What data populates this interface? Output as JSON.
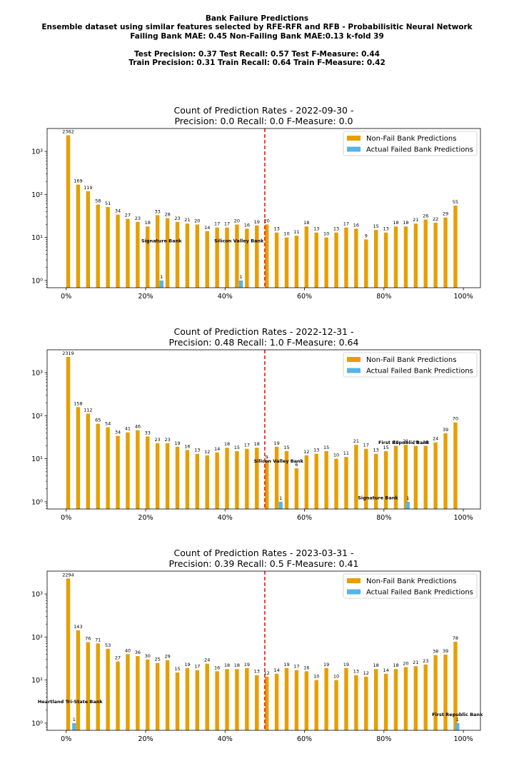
{
  "header": {
    "lines": [
      "Bank Failure Predictions",
      "Ensemble dataset using similar features selected by RFE-RFR and RFB - Probabilisitic Neural Network",
      "Failing Bank MAE: 0.45 Non-Failing Bank MAE:0.13 k-fold 39",
      "",
      "Test Precision: 0.37 Test Recall: 0.57 Test F-Measure: 0.44",
      "Train Precision: 0.31 Train Recall: 0.64 Train F-Measure: 0.42"
    ]
  },
  "colors": {
    "non_fail": "#E69F00",
    "failed": "#56B4E9",
    "threshold": "#FF0000"
  },
  "chart_data": [
    {
      "type": "bar",
      "title_line1": "Count of Prediction Rates - 2022-09-30 -",
      "title_line2": "Precision: 0.0   Recall: 0.0   F-Measure: 0.0",
      "x_ticks": [
        "0%",
        "20%",
        "40%",
        "60%",
        "80%",
        "100%"
      ],
      "x_tick_values": [
        0,
        20,
        40,
        60,
        80,
        100
      ],
      "y_scale": "log",
      "y_ticks": [
        "10⁰",
        "10¹",
        "10²",
        "10³"
      ],
      "y_tick_values": [
        1,
        10,
        100,
        1000
      ],
      "legend_position": "top-right",
      "threshold": 50,
      "series": [
        {
          "name": "Non-Fail Bank Predictions",
          "color_key": "non_fail",
          "points": [
            [
              0.5,
              2362
            ],
            [
              3,
              169
            ],
            [
              5.5,
              119
            ],
            [
              8,
              58
            ],
            [
              10.5,
              51
            ],
            [
              13,
              34
            ],
            [
              15.5,
              27
            ],
            [
              18,
              23
            ],
            [
              20.5,
              18
            ],
            [
              23,
              33
            ],
            [
              25.5,
              28
            ],
            [
              28,
              23
            ],
            [
              30.5,
              21
            ],
            [
              33,
              20
            ],
            [
              35.5,
              14
            ],
            [
              38,
              17
            ],
            [
              40.5,
              17
            ],
            [
              43,
              20
            ],
            [
              45.5,
              16
            ],
            [
              48,
              19
            ],
            [
              50.5,
              20
            ],
            [
              53,
              13
            ],
            [
              55.5,
              10
            ],
            [
              58,
              11
            ],
            [
              60.5,
              18
            ],
            [
              63,
              13
            ],
            [
              65.5,
              10
            ],
            [
              68,
              13
            ],
            [
              70.5,
              17
            ],
            [
              73,
              16
            ],
            [
              75.5,
              9
            ],
            [
              78,
              15
            ],
            [
              80.5,
              13
            ],
            [
              83,
              18
            ],
            [
              85.5,
              18
            ],
            [
              88,
              21
            ],
            [
              90.5,
              26
            ],
            [
              93,
              22
            ],
            [
              95.5,
              29
            ],
            [
              98,
              55
            ]
          ]
        },
        {
          "name": "Actual Failed Bank Predictions",
          "color_key": "failed",
          "points": [
            [
              24,
              1
            ],
            [
              44,
              1
            ]
          ]
        }
      ],
      "annotations": [
        {
          "text": "Signature Bank",
          "x": 24,
          "y": 8.5
        },
        {
          "text": "Silicon Valley Bank",
          "x": 43.5,
          "y": 8.5
        }
      ]
    },
    {
      "type": "bar",
      "title_line1": "Count of Prediction Rates - 2022-12-31 -",
      "title_line2": "Precision: 0.48   Recall: 1.0   F-Measure: 0.64",
      "x_ticks": [
        "0%",
        "20%",
        "40%",
        "60%",
        "80%",
        "100%"
      ],
      "x_tick_values": [
        0,
        20,
        40,
        60,
        80,
        100
      ],
      "y_scale": "log",
      "y_ticks": [
        "10⁰",
        "10¹",
        "10²",
        "10³"
      ],
      "y_tick_values": [
        1,
        10,
        100,
        1000
      ],
      "legend_position": "top-right",
      "threshold": 50,
      "series": [
        {
          "name": "Non-Fail Bank Predictions",
          "color_key": "non_fail",
          "points": [
            [
              0.5,
              2319
            ],
            [
              3,
              158
            ],
            [
              5.5,
              112
            ],
            [
              8,
              65
            ],
            [
              10.5,
              54
            ],
            [
              13,
              34
            ],
            [
              15.5,
              41
            ],
            [
              18,
              46
            ],
            [
              20.5,
              33
            ],
            [
              23,
              23
            ],
            [
              25.5,
              23
            ],
            [
              28,
              19
            ],
            [
              30.5,
              16
            ],
            [
              33,
              13
            ],
            [
              35.5,
              12
            ],
            [
              38,
              14
            ],
            [
              40.5,
              18
            ],
            [
              43,
              15
            ],
            [
              45.5,
              17
            ],
            [
              48,
              18
            ],
            [
              50.5,
              9
            ],
            [
              53,
              19
            ],
            [
              55.5,
              15
            ],
            [
              58,
              6
            ],
            [
              60.5,
              12
            ],
            [
              63,
              13
            ],
            [
              65.5,
              15
            ],
            [
              68,
              10
            ],
            [
              70.5,
              11
            ],
            [
              73,
              21
            ],
            [
              75.5,
              17
            ],
            [
              78,
              13
            ],
            [
              80.5,
              15
            ],
            [
              83,
              20
            ],
            [
              85.5,
              21
            ],
            [
              88,
              20
            ],
            [
              90.5,
              20
            ],
            [
              93,
              24
            ],
            [
              95.5,
              39
            ],
            [
              98,
              70
            ]
          ]
        },
        {
          "name": "Actual Failed Bank Predictions",
          "color_key": "failed",
          "points": [
            [
              54,
              1
            ],
            [
              86,
              1
            ]
          ]
        }
      ],
      "annotations": [
        {
          "text": "Silicon Valley Bank",
          "x": 53.5,
          "y": 9
        },
        {
          "text": "Signature Bank",
          "x": 78.5,
          "y": 1.25
        },
        {
          "text": "First Republic Bank",
          "x": 85,
          "y": 24
        }
      ]
    },
    {
      "type": "bar",
      "title_line1": "Count of Prediction Rates - 2023-03-31 -",
      "title_line2": "Precision: 0.39   Recall: 0.5   F-Measure: 0.41",
      "x_ticks": [
        "0%",
        "20%",
        "40%",
        "60%",
        "80%",
        "100%"
      ],
      "x_tick_values": [
        0,
        20,
        40,
        60,
        80,
        100
      ],
      "y_scale": "log",
      "y_ticks": [
        "10⁰",
        "10¹",
        "10²",
        "10³"
      ],
      "y_tick_values": [
        1,
        10,
        100,
        1000
      ],
      "legend_position": "top-right",
      "threshold": 50,
      "series": [
        {
          "name": "Non-Fail Bank Predictions",
          "color_key": "non_fail",
          "points": [
            [
              0.5,
              2294
            ],
            [
              3,
              143
            ],
            [
              5.5,
              76
            ],
            [
              8,
              71
            ],
            [
              10.5,
              53
            ],
            [
              13,
              27
            ],
            [
              15.5,
              40
            ],
            [
              18,
              36
            ],
            [
              20.5,
              30
            ],
            [
              23,
              25
            ],
            [
              25.5,
              29
            ],
            [
              28,
              15
            ],
            [
              30.5,
              19
            ],
            [
              33,
              17
            ],
            [
              35.5,
              24
            ],
            [
              38,
              16
            ],
            [
              40.5,
              18
            ],
            [
              43,
              18
            ],
            [
              45.5,
              19
            ],
            [
              48,
              13
            ],
            [
              50.5,
              12
            ],
            [
              53,
              14
            ],
            [
              55.5,
              19
            ],
            [
              58,
              17
            ],
            [
              60.5,
              16
            ],
            [
              63,
              10
            ],
            [
              65.5,
              19
            ],
            [
              68,
              10
            ],
            [
              70.5,
              19
            ],
            [
              73,
              13
            ],
            [
              75.5,
              12
            ],
            [
              78,
              18
            ],
            [
              80.5,
              14
            ],
            [
              83,
              18
            ],
            [
              85.5,
              20
            ],
            [
              88,
              21
            ],
            [
              90.5,
              23
            ],
            [
              93,
              38
            ],
            [
              95.5,
              39
            ],
            [
              98,
              78
            ]
          ]
        },
        {
          "name": "Actual Failed Bank Predictions",
          "color_key": "failed",
          "points": [
            [
              2,
              1
            ],
            [
              98.5,
              1
            ]
          ]
        }
      ],
      "annotations": [
        {
          "text": "Heartland Tri-State Bank",
          "x": 1,
          "y": 3.2
        },
        {
          "text": "First Republic Bank",
          "x": 98.5,
          "y": 1.6
        }
      ]
    }
  ]
}
